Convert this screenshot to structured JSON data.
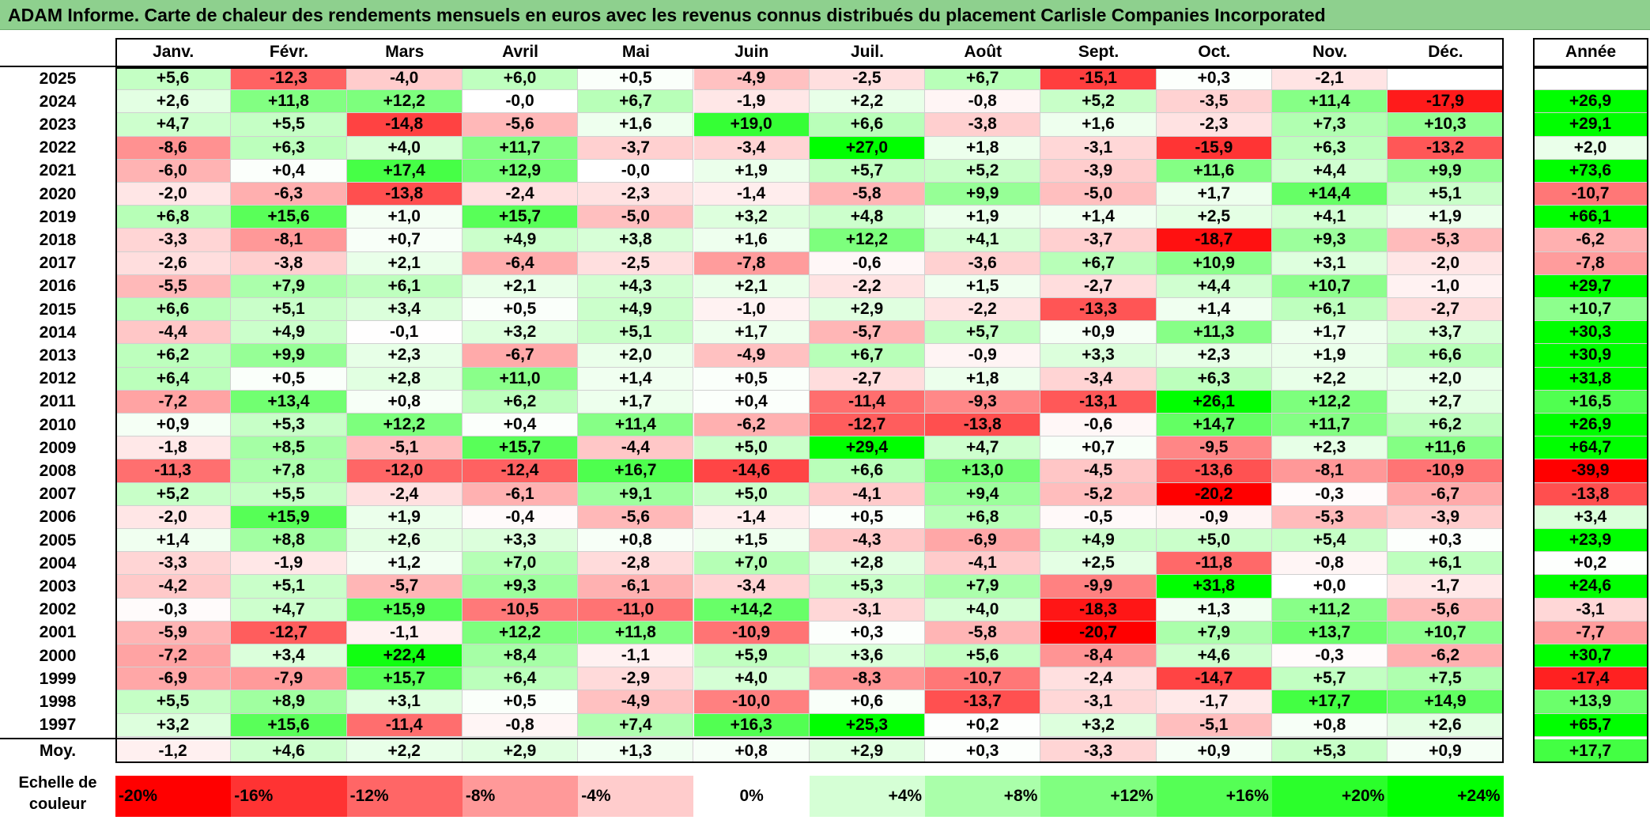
{
  "title": "ADAM Informe. Carte de chaleur des rendements mensuels en euros avec les revenus connus distribués du placement Carlisle Companies Incorporated",
  "chart_data": {
    "type": "heatmap",
    "columns": [
      "Janv.",
      "Févr.",
      "Mars",
      "Avril",
      "Mai",
      "Juin",
      "Juil.",
      "Août",
      "Sept.",
      "Oct.",
      "Nov.",
      "Déc."
    ],
    "year_column": "Année",
    "rows": [
      {
        "year": "2025",
        "values": [
          "+5,6",
          "-12,3",
          "-4,0",
          "+6,0",
          "+0,5",
          "-4,9",
          "-2,5",
          "+6,7",
          "-15,1",
          "+0,3",
          "-2,1",
          ""
        ],
        "annual": ""
      },
      {
        "year": "2024",
        "values": [
          "+2,6",
          "+11,8",
          "+12,2",
          "-0,0",
          "+6,7",
          "-1,9",
          "+2,2",
          "-0,8",
          "+5,2",
          "-3,5",
          "+11,4",
          "-17,9"
        ],
        "annual": "+26,9"
      },
      {
        "year": "2023",
        "values": [
          "+4,7",
          "+5,5",
          "-14,8",
          "-5,6",
          "+1,6",
          "+19,0",
          "+6,6",
          "-3,8",
          "+1,6",
          "-2,3",
          "+7,3",
          "+10,3"
        ],
        "annual": "+29,1"
      },
      {
        "year": "2022",
        "values": [
          "-8,6",
          "+6,3",
          "+4,0",
          "+11,7",
          "-3,7",
          "-3,4",
          "+27,0",
          "+1,8",
          "-3,1",
          "-15,9",
          "+6,3",
          "-13,2"
        ],
        "annual": "+2,0"
      },
      {
        "year": "2021",
        "values": [
          "-6,0",
          "+0,4",
          "+17,4",
          "+12,9",
          "-0,0",
          "+1,9",
          "+5,7",
          "+5,2",
          "-3,9",
          "+11,6",
          "+4,4",
          "+9,9"
        ],
        "annual": "+73,6"
      },
      {
        "year": "2020",
        "values": [
          "-2,0",
          "-6,3",
          "-13,8",
          "-2,4",
          "-2,3",
          "-1,4",
          "-5,8",
          "+9,9",
          "-5,0",
          "+1,7",
          "+14,4",
          "+5,1"
        ],
        "annual": "-10,7"
      },
      {
        "year": "2019",
        "values": [
          "+6,8",
          "+15,6",
          "+1,0",
          "+15,7",
          "-5,0",
          "+3,2",
          "+4,8",
          "+1,9",
          "+1,4",
          "+2,5",
          "+4,1",
          "+1,9"
        ],
        "annual": "+66,1"
      },
      {
        "year": "2018",
        "values": [
          "-3,3",
          "-8,1",
          "+0,7",
          "+4,9",
          "+3,8",
          "+1,6",
          "+12,2",
          "+4,1",
          "-3,7",
          "-18,7",
          "+9,3",
          "-5,3"
        ],
        "annual": "-6,2"
      },
      {
        "year": "2017",
        "values": [
          "-2,6",
          "-3,8",
          "+2,1",
          "-6,4",
          "-2,5",
          "-7,8",
          "-0,6",
          "-3,6",
          "+6,7",
          "+10,9",
          "+3,1",
          "-2,0"
        ],
        "annual": "-7,8"
      },
      {
        "year": "2016",
        "values": [
          "-5,5",
          "+7,9",
          "+6,1",
          "+2,1",
          "+4,3",
          "+2,1",
          "-2,2",
          "+1,5",
          "-2,7",
          "+4,4",
          "+10,7",
          "-1,0"
        ],
        "annual": "+29,7"
      },
      {
        "year": "2015",
        "values": [
          "+6,6",
          "+5,1",
          "+3,4",
          "+0,5",
          "+4,9",
          "-1,0",
          "+2,9",
          "-2,2",
          "-13,3",
          "+1,4",
          "+6,1",
          "-2,7"
        ],
        "annual": "+10,7"
      },
      {
        "year": "2014",
        "values": [
          "-4,4",
          "+4,9",
          "-0,1",
          "+3,2",
          "+5,1",
          "+1,7",
          "-5,7",
          "+5,7",
          "+0,9",
          "+11,3",
          "+1,7",
          "+3,7"
        ],
        "annual": "+30,3"
      },
      {
        "year": "2013",
        "values": [
          "+6,2",
          "+9,9",
          "+2,3",
          "-6,7",
          "+2,0",
          "-4,9",
          "+6,7",
          "-0,9",
          "+3,3",
          "+2,3",
          "+1,9",
          "+6,6"
        ],
        "annual": "+30,9"
      },
      {
        "year": "2012",
        "values": [
          "+6,4",
          "+0,5",
          "+2,8",
          "+11,0",
          "+1,4",
          "+0,5",
          "-2,7",
          "+1,8",
          "-3,4",
          "+6,3",
          "+2,2",
          "+2,0"
        ],
        "annual": "+31,8"
      },
      {
        "year": "2011",
        "values": [
          "-7,2",
          "+13,4",
          "+0,8",
          "+6,2",
          "+1,7",
          "+0,4",
          "-11,4",
          "-9,3",
          "-13,1",
          "+26,1",
          "+12,2",
          "+2,7"
        ],
        "annual": "+16,5"
      },
      {
        "year": "2010",
        "values": [
          "+0,9",
          "+5,3",
          "+12,2",
          "+0,4",
          "+11,4",
          "-6,2",
          "-12,7",
          "-13,8",
          "-0,6",
          "+14,7",
          "+11,7",
          "+6,2"
        ],
        "annual": "+26,9"
      },
      {
        "year": "2009",
        "values": [
          "-1,8",
          "+8,5",
          "-5,1",
          "+15,7",
          "-4,4",
          "+5,0",
          "+29,4",
          "+4,7",
          "+0,7",
          "-9,5",
          "+2,3",
          "+11,6"
        ],
        "annual": "+64,7"
      },
      {
        "year": "2008",
        "values": [
          "-11,3",
          "+7,8",
          "-12,0",
          "-12,4",
          "+16,7",
          "-14,6",
          "+6,6",
          "+13,0",
          "-4,5",
          "-13,6",
          "-8,1",
          "-10,9"
        ],
        "annual": "-39,9"
      },
      {
        "year": "2007",
        "values": [
          "+5,2",
          "+5,5",
          "-2,4",
          "-6,1",
          "+9,1",
          "+5,0",
          "-4,1",
          "+9,4",
          "-5,2",
          "-20,2",
          "-0,3",
          "-6,7"
        ],
        "annual": "-13,8"
      },
      {
        "year": "2006",
        "values": [
          "-2,0",
          "+15,9",
          "+1,9",
          "-0,4",
          "-5,6",
          "-1,4",
          "+0,5",
          "+6,8",
          "-0,5",
          "-0,9",
          "-5,3",
          "-3,9"
        ],
        "annual": "+3,4"
      },
      {
        "year": "2005",
        "values": [
          "+1,4",
          "+8,8",
          "+2,6",
          "+3,3",
          "+0,8",
          "+1,5",
          "-4,3",
          "-6,9",
          "+4,9",
          "+5,0",
          "+5,4",
          "+0,3"
        ],
        "annual": "+23,9"
      },
      {
        "year": "2004",
        "values": [
          "-3,3",
          "-1,9",
          "+1,2",
          "+7,0",
          "-2,8",
          "+7,0",
          "+2,8",
          "-4,1",
          "+2,5",
          "-11,8",
          "-0,8",
          "+6,1"
        ],
        "annual": "+0,2"
      },
      {
        "year": "2003",
        "values": [
          "-4,2",
          "+5,1",
          "-5,7",
          "+9,3",
          "-6,1",
          "-3,4",
          "+5,3",
          "+7,9",
          "-9,9",
          "+31,8",
          "+0,0",
          "-1,7"
        ],
        "annual": "+24,6"
      },
      {
        "year": "2002",
        "values": [
          "-0,3",
          "+4,7",
          "+15,9",
          "-10,5",
          "-11,0",
          "+14,2",
          "-3,1",
          "+4,0",
          "-18,3",
          "+1,3",
          "+11,2",
          "-5,6"
        ],
        "annual": "-3,1"
      },
      {
        "year": "2001",
        "values": [
          "-5,9",
          "-12,7",
          "-1,1",
          "+12,2",
          "+11,8",
          "-10,9",
          "+0,3",
          "-5,8",
          "-20,7",
          "+7,9",
          "+13,7",
          "+10,7"
        ],
        "annual": "-7,7"
      },
      {
        "year": "2000",
        "values": [
          "-7,2",
          "+3,4",
          "+22,4",
          "+8,4",
          "-1,1",
          "+5,9",
          "+3,6",
          "+5,6",
          "-8,4",
          "+4,6",
          "-0,3",
          "-6,2"
        ],
        "annual": "+30,7"
      },
      {
        "year": "1999",
        "values": [
          "-6,9",
          "-7,9",
          "+15,7",
          "+6,4",
          "-2,9",
          "+4,0",
          "-8,3",
          "-10,7",
          "-2,4",
          "-14,7",
          "+5,7",
          "+7,5"
        ],
        "annual": "-17,4"
      },
      {
        "year": "1998",
        "values": [
          "+5,5",
          "+8,9",
          "+3,1",
          "+0,5",
          "-4,9",
          "-10,0",
          "+0,6",
          "-13,7",
          "-3,1",
          "-1,7",
          "+17,7",
          "+14,9"
        ],
        "annual": "+13,9"
      },
      {
        "year": "1997",
        "values": [
          "+3,2",
          "+15,6",
          "-11,4",
          "-0,8",
          "+7,4",
          "+16,3",
          "+25,3",
          "+0,2",
          "+3,2",
          "-5,1",
          "+0,8",
          "+2,6"
        ],
        "annual": "+65,7"
      }
    ],
    "average": {
      "label": "Moy.",
      "values": [
        "-1,2",
        "+4,6",
        "+2,2",
        "+2,9",
        "+1,3",
        "+0,8",
        "+2,9",
        "+0,3",
        "-3,3",
        "+0,9",
        "+5,3",
        "+0,9"
      ],
      "annual": "+17,7"
    },
    "legend": {
      "label": "Echelle de couleur",
      "entries": [
        {
          "text": "-20%",
          "value": -20
        },
        {
          "text": "-16%",
          "value": -16
        },
        {
          "text": "-12%",
          "value": -12
        },
        {
          "text": "-8%",
          "value": -8
        },
        {
          "text": "-4%",
          "value": -4
        },
        {
          "text": "0%",
          "value": 0
        },
        {
          "text": "+4%",
          "value": 4
        },
        {
          "text": "+8%",
          "value": 8
        },
        {
          "text": "+12%",
          "value": 12
        },
        {
          "text": "+16%",
          "value": 16
        },
        {
          "text": "+20%",
          "value": 20
        },
        {
          "text": "+24%",
          "value": 24
        }
      ]
    },
    "colors": {
      "negative_max": "#FF0000",
      "neutral": "#FFFFFF",
      "positive_max": "#00FF00"
    }
  }
}
